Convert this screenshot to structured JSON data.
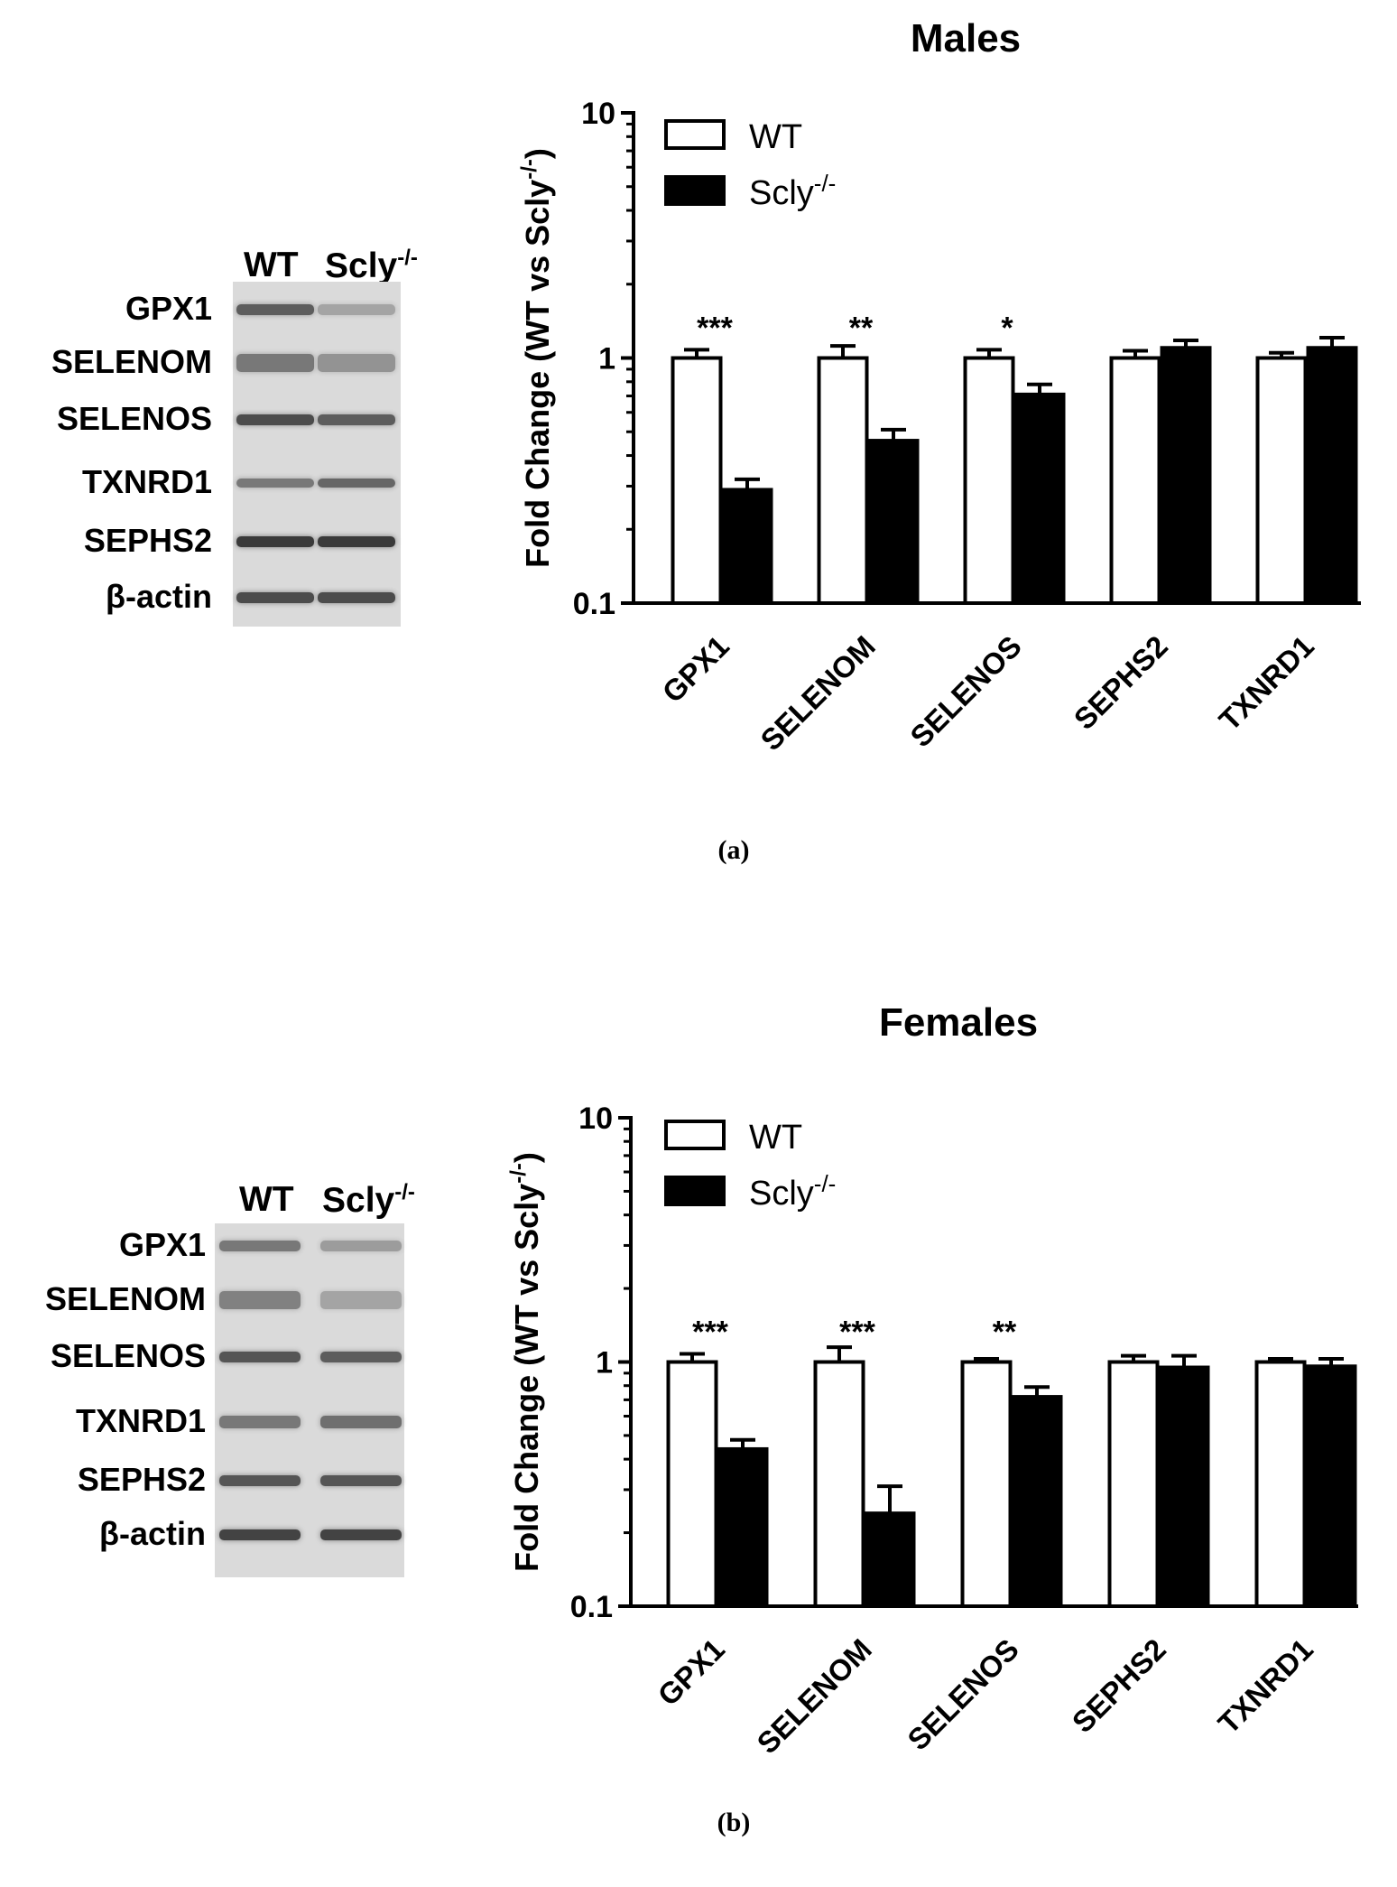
{
  "panels": [
    {
      "letter": "(a)",
      "blot": {
        "lanes": [
          "WT",
          "Scly",
          "-/-"
        ],
        "rows": [
          "GPX1",
          "SELENOM",
          "SELENOS",
          "TXNRD1",
          "SEPHS2",
          "β-actin"
        ]
      }
    },
    {
      "letter": "(b)",
      "blot": {
        "lanes": [
          "WT",
          "Scly",
          "-/-"
        ],
        "rows": [
          "GPX1",
          "SELENOM",
          "SELENOS",
          "TXNRD1",
          "SEPHS2",
          "β-actin"
        ]
      }
    }
  ],
  "chart_data": [
    {
      "type": "bar",
      "title": "Males",
      "ylabel": "Fold Change (WT vs Scly",
      "ylabel_sup": "-/-",
      "ylabel_close": ")",
      "yscale": "log",
      "ylim": [
        0.1,
        10
      ],
      "yticks": [
        "0.1",
        "1",
        "10"
      ],
      "categories": [
        "GPX1",
        "SELENOM",
        "SELENOS",
        "SEPHS2",
        "TXNRD1"
      ],
      "series": [
        {
          "name": "WT",
          "name_sup": "",
          "fill": "#ffffff",
          "values": [
            1.0,
            1.0,
            1.0,
            1.0,
            1.0
          ],
          "error": [
            0.08,
            0.12,
            0.08,
            0.07,
            0.05
          ]
        },
        {
          "name": "Scly",
          "name_sup": "-/-",
          "fill": "#000000",
          "values": [
            0.29,
            0.46,
            0.71,
            1.1,
            1.1
          ],
          "error": [
            0.03,
            0.05,
            0.07,
            0.08,
            0.11
          ]
        }
      ],
      "significance": [
        "***",
        "**",
        "*",
        "",
        ""
      ],
      "legend_position": "top-left"
    },
    {
      "type": "bar",
      "title": "Females",
      "ylabel": "Fold Change (WT vs Scly",
      "ylabel_sup": "-/-",
      "ylabel_close": ")",
      "yscale": "log",
      "ylim": [
        0.1,
        10
      ],
      "yticks": [
        "0.1",
        "1",
        "10"
      ],
      "categories": [
        "GPX1",
        "SELENOM",
        "SELENOS",
        "SEPHS2",
        "TXNRD1"
      ],
      "series": [
        {
          "name": "WT",
          "name_sup": "",
          "fill": "#ffffff",
          "values": [
            1.0,
            1.0,
            1.0,
            1.0,
            1.0
          ],
          "error": [
            0.08,
            0.15,
            0.03,
            0.06,
            0.03
          ]
        },
        {
          "name": "Scly",
          "name_sup": "-/-",
          "fill": "#000000",
          "values": [
            0.44,
            0.24,
            0.72,
            0.95,
            0.96
          ],
          "error": [
            0.04,
            0.07,
            0.07,
            0.11,
            0.07
          ]
        }
      ],
      "significance": [
        "***",
        "***",
        "**",
        "",
        ""
      ],
      "legend_position": "top-left"
    }
  ]
}
